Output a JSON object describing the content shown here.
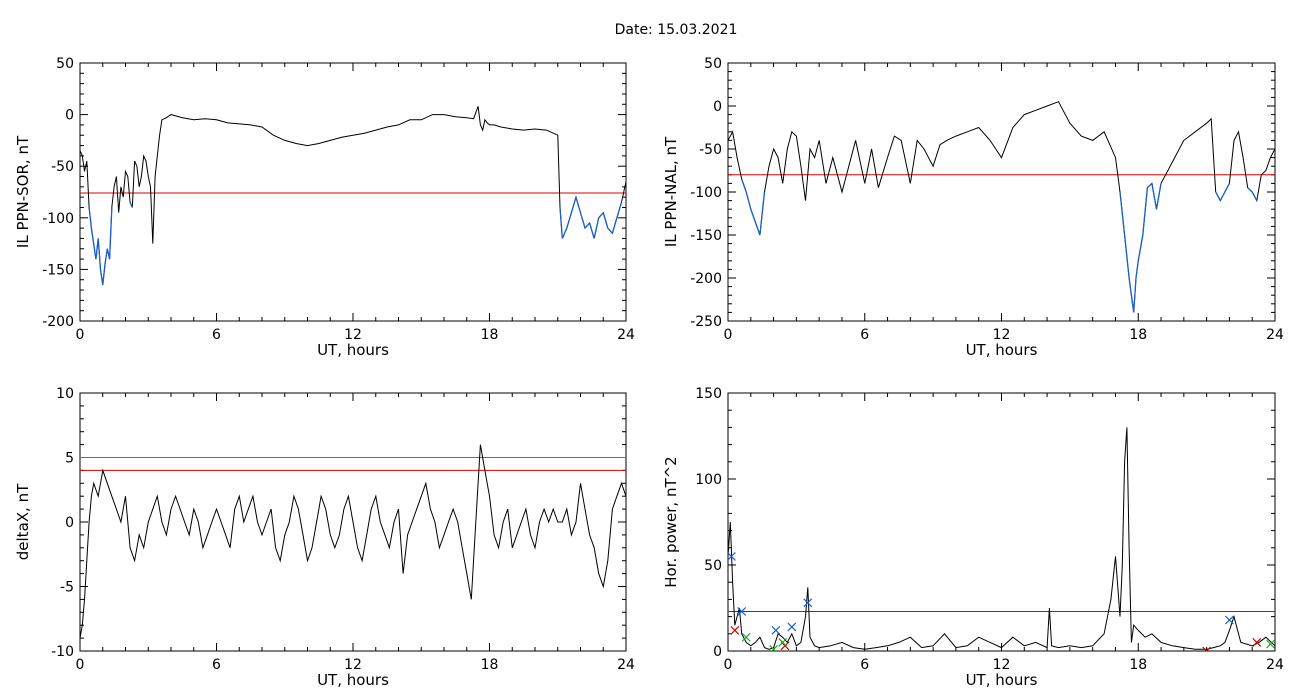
{
  "page": {
    "title": "Date:  15.03.2021"
  },
  "colors": {
    "signal": "#000000",
    "highlight": "#1a5fd0",
    "threshold_red": "#dd0000",
    "threshold_teal": "#1a8fa0",
    "marker_blue": "#1a5fd0",
    "marker_red": "#cc0000",
    "marker_green": "#22aa22"
  },
  "chart_data": [
    {
      "id": "il-sor",
      "type": "line",
      "xlabel": "UT, hours",
      "ylabel": "IL PPN-SOR, nT",
      "xlim": [
        0,
        24
      ],
      "ylim": [
        -200,
        50
      ],
      "xticks": [
        0,
        6,
        12,
        18,
        24
      ],
      "yticks": [
        -200,
        -150,
        -100,
        -50,
        0,
        50
      ],
      "thresholds": [
        {
          "value": -76,
          "color": "#dd0000"
        }
      ],
      "highlight_below": -76,
      "series": [
        {
          "x": [
            0,
            0.1,
            0.2,
            0.3,
            0.4,
            0.5,
            0.6,
            0.7,
            0.8,
            0.9,
            1.0,
            1.1,
            1.2,
            1.3,
            1.4,
            1.5,
            1.6,
            1.7,
            1.8,
            1.9,
            2.0,
            2.1,
            2.2,
            2.3,
            2.4,
            2.5,
            2.6,
            2.7,
            2.8,
            2.9,
            3.0,
            3.1,
            3.2,
            3.3,
            3.4,
            3.5,
            3.6,
            3.8,
            4.0,
            4.5,
            5,
            5.5,
            6,
            6.5,
            7,
            7.5,
            8,
            8.5,
            9,
            9.5,
            10,
            10.5,
            11,
            11.5,
            12,
            12.5,
            13,
            13.5,
            14,
            14.5,
            15,
            15.5,
            16,
            16.5,
            17,
            17.3,
            17.5,
            17.6,
            17.7,
            17.8,
            17.9,
            18.0,
            18.2,
            18.5,
            19,
            19.5,
            20,
            20.5,
            21,
            21.1,
            21.2,
            21.3,
            21.4,
            21.6,
            21.8,
            22.0,
            22.2,
            22.4,
            22.6,
            22.8,
            23.0,
            23.2,
            23.4,
            23.6,
            23.8,
            24.0
          ],
          "values": [
            -35,
            -40,
            -55,
            -45,
            -90,
            -110,
            -125,
            -140,
            -120,
            -150,
            -165,
            -145,
            -130,
            -140,
            -90,
            -70,
            -60,
            -95,
            -70,
            -80,
            -55,
            -60,
            -85,
            -90,
            -45,
            -50,
            -70,
            -60,
            -40,
            -45,
            -60,
            -70,
            -125,
            -60,
            -40,
            -20,
            -5,
            -3,
            0,
            -3,
            -5,
            -4,
            -5,
            -8,
            -9,
            -10,
            -12,
            -20,
            -25,
            -28,
            -30,
            -28,
            -25,
            -22,
            -20,
            -18,
            -15,
            -12,
            -10,
            -5,
            -5,
            0,
            0,
            -2,
            -3,
            -4,
            8,
            -10,
            -15,
            -5,
            -8,
            -10,
            -10,
            -12,
            -14,
            -15,
            -14,
            -15,
            -20,
            -90,
            -120,
            -115,
            -110,
            -95,
            -80,
            -95,
            -110,
            -105,
            -120,
            -100,
            -95,
            -110,
            -115,
            -100,
            -85,
            -65
          ]
        }
      ]
    },
    {
      "id": "il-nal",
      "type": "line",
      "xlabel": "UT, hours",
      "ylabel": "IL PPN-NAL, nT",
      "xlim": [
        0,
        24
      ],
      "ylim": [
        -250,
        50
      ],
      "xticks": [
        0,
        6,
        12,
        18,
        24
      ],
      "yticks": [
        -250,
        -200,
        -150,
        -100,
        -50,
        0,
        50
      ],
      "thresholds": [
        {
          "value": -80,
          "color": "#dd0000"
        }
      ],
      "highlight_below": -80,
      "series": [
        {
          "x": [
            0,
            0.2,
            0.4,
            0.6,
            0.8,
            1.0,
            1.2,
            1.4,
            1.6,
            1.8,
            2.0,
            2.2,
            2.4,
            2.6,
            2.8,
            3.0,
            3.2,
            3.4,
            3.6,
            3.8,
            4.0,
            4.3,
            4.6,
            5.0,
            5.3,
            5.6,
            6.0,
            6.3,
            6.6,
            7.0,
            7.3,
            7.6,
            8.0,
            8.3,
            8.6,
            9.0,
            9.3,
            9.6,
            10.0,
            10.5,
            11.0,
            11.5,
            12.0,
            12.5,
            13.0,
            13.5,
            14.0,
            14.5,
            15.0,
            15.5,
            16.0,
            16.5,
            17.0,
            17.2,
            17.4,
            17.6,
            17.8,
            17.9,
            18.0,
            18.2,
            18.4,
            18.6,
            18.8,
            19.0,
            19.2,
            19.6,
            20.0,
            20.5,
            21.0,
            21.2,
            21.4,
            21.6,
            21.8,
            22.0,
            22.2,
            22.4,
            22.6,
            22.8,
            23.0,
            23.2,
            23.4,
            23.6,
            23.8,
            24.0
          ],
          "values": [
            -40,
            -30,
            -60,
            -85,
            -100,
            -120,
            -135,
            -150,
            -100,
            -70,
            -50,
            -60,
            -90,
            -50,
            -30,
            -35,
            -70,
            -110,
            -50,
            -60,
            -40,
            -90,
            -60,
            -100,
            -70,
            -40,
            -90,
            -50,
            -95,
            -60,
            -35,
            -40,
            -90,
            -40,
            -50,
            -70,
            -45,
            -40,
            -35,
            -30,
            -25,
            -40,
            -60,
            -25,
            -10,
            -5,
            0,
            5,
            -20,
            -35,
            -40,
            -30,
            -60,
            -100,
            -150,
            -200,
            -240,
            -200,
            -180,
            -150,
            -95,
            -90,
            -120,
            -90,
            -80,
            -60,
            -40,
            -30,
            -20,
            -15,
            -100,
            -110,
            -100,
            -90,
            -40,
            -30,
            -60,
            -95,
            -100,
            -110,
            -80,
            -75,
            -60,
            -50
          ]
        }
      ]
    },
    {
      "id": "deltax",
      "type": "line",
      "xlabel": "UT, hours",
      "ylabel": "deltaX, nT",
      "xlim": [
        0,
        24
      ],
      "ylim": [
        -10,
        10
      ],
      "xticks": [
        0,
        6,
        12,
        18,
        24
      ],
      "yticks": [
        -10,
        -5,
        0,
        5,
        10
      ],
      "thresholds": [
        {
          "value": 5,
          "color": "#1a8fa0"
        },
        {
          "value": 4,
          "color": "#dd0000"
        }
      ],
      "series": [
        {
          "x": [
            0,
            0.1,
            0.2,
            0.3,
            0.4,
            0.5,
            0.6,
            0.8,
            1.0,
            1.2,
            1.4,
            1.6,
            1.8,
            2.0,
            2.2,
            2.4,
            2.6,
            2.8,
            3.0,
            3.2,
            3.4,
            3.6,
            3.8,
            4.0,
            4.2,
            4.4,
            4.6,
            4.8,
            5.0,
            5.2,
            5.4,
            5.6,
            5.8,
            6.0,
            6.2,
            6.4,
            6.6,
            6.8,
            7.0,
            7.2,
            7.4,
            7.6,
            7.8,
            8.0,
            8.2,
            8.4,
            8.6,
            8.8,
            9.0,
            9.2,
            9.4,
            9.6,
            9.8,
            10.0,
            10.2,
            10.4,
            10.6,
            10.8,
            11.0,
            11.2,
            11.4,
            11.6,
            11.8,
            12.0,
            12.2,
            12.4,
            12.6,
            12.8,
            13.0,
            13.2,
            13.4,
            13.6,
            13.8,
            14.0,
            14.2,
            14.4,
            14.6,
            14.8,
            15.0,
            15.2,
            15.4,
            15.6,
            15.8,
            16.0,
            16.2,
            16.4,
            16.6,
            16.8,
            17.0,
            17.2,
            17.4,
            17.6,
            17.8,
            18.0,
            18.2,
            18.4,
            18.6,
            18.8,
            19.0,
            19.2,
            19.4,
            19.6,
            19.8,
            20.0,
            20.2,
            20.4,
            20.6,
            20.8,
            21.0,
            21.2,
            21.4,
            21.6,
            21.8,
            22.0,
            22.2,
            22.4,
            22.6,
            22.8,
            23.0,
            23.2,
            23.4,
            23.6,
            23.8,
            24.0
          ],
          "values": [
            -9,
            -8,
            -6,
            -3,
            0,
            2,
            3,
            2,
            4,
            3,
            2,
            1,
            0,
            2,
            -2,
            -3,
            -1,
            -2,
            0,
            1,
            2,
            0,
            -1,
            1,
            2,
            1,
            0,
            -1,
            1,
            0,
            -2,
            -1,
            0,
            1,
            0,
            -1,
            -2,
            1,
            2,
            0,
            1,
            2,
            0,
            -1,
            0,
            1,
            -2,
            -3,
            -1,
            0,
            2,
            1,
            -1,
            -3,
            -2,
            0,
            2,
            1,
            -1,
            -2,
            -1,
            1,
            2,
            0,
            -2,
            -3,
            -1,
            1,
            2,
            0,
            -1,
            -2,
            0,
            1,
            -4,
            -1,
            0,
            1,
            2,
            3,
            1,
            0,
            -2,
            -1,
            0,
            1,
            0,
            -2,
            -4,
            -6,
            0,
            6,
            4,
            2,
            -1,
            -2,
            0,
            1,
            -2,
            -1,
            0,
            1,
            -1,
            -2,
            0,
            1,
            0,
            1,
            0,
            0,
            1,
            -1,
            0,
            3,
            1,
            -1,
            -2,
            -4,
            -5,
            -3,
            1,
            2,
            3,
            2
          ]
        }
      ]
    },
    {
      "id": "hor-power",
      "type": "line",
      "xlabel": "UT, hours",
      "ylabel": "Hor. power, nT^2",
      "xlim": [
        0,
        24
      ],
      "ylim": [
        0,
        150
      ],
      "xticks": [
        0,
        6,
        12,
        18,
        24
      ],
      "yticks": [
        0,
        50,
        100,
        150
      ],
      "thresholds": [
        {
          "value": 23,
          "color": "#dd0000"
        }
      ],
      "series": [
        {
          "x": [
            0,
            0.1,
            0.2,
            0.3,
            0.4,
            0.5,
            0.6,
            0.8,
            1.0,
            1.2,
            1.4,
            1.6,
            1.8,
            2.0,
            2.2,
            2.4,
            2.6,
            2.8,
            3.0,
            3.2,
            3.4,
            3.5,
            3.6,
            3.8,
            4.0,
            4.5,
            5,
            5.5,
            6,
            6.5,
            7,
            7.5,
            8,
            8.5,
            9,
            9.5,
            10,
            10.5,
            11,
            11.5,
            12,
            12.5,
            13,
            13.5,
            14,
            14.1,
            14.2,
            14.5,
            15,
            15.5,
            16,
            16.5,
            16.8,
            17.0,
            17.2,
            17.3,
            17.4,
            17.5,
            17.6,
            17.7,
            17.8,
            18.0,
            18.3,
            18.6,
            19,
            19.5,
            20,
            20.5,
            21,
            21.3,
            21.6,
            21.8,
            22.0,
            22.2,
            22.5,
            23,
            23.3,
            23.6,
            24.0
          ],
          "values": [
            55,
            75,
            40,
            15,
            20,
            25,
            10,
            5,
            3,
            5,
            8,
            2,
            1,
            2,
            10,
            8,
            5,
            10,
            3,
            5,
            20,
            37,
            8,
            3,
            2,
            3,
            5,
            2,
            1,
            2,
            3,
            5,
            8,
            2,
            3,
            10,
            2,
            3,
            8,
            5,
            2,
            8,
            3,
            5,
            2,
            25,
            3,
            2,
            3,
            2,
            3,
            10,
            30,
            55,
            20,
            50,
            110,
            130,
            60,
            5,
            15,
            12,
            8,
            10,
            5,
            3,
            2,
            1,
            1,
            2,
            3,
            5,
            12,
            20,
            5,
            3,
            5,
            8,
            3
          ]
        }
      ],
      "markers": [
        {
          "x": 0.15,
          "y": 55,
          "color": "#1a5fd0"
        },
        {
          "x": 0.6,
          "y": 23,
          "color": "#1a5fd0"
        },
        {
          "x": 2.1,
          "y": 12,
          "color": "#1a5fd0"
        },
        {
          "x": 2.8,
          "y": 14,
          "color": "#1a5fd0"
        },
        {
          "x": 3.5,
          "y": 28,
          "color": "#1a5fd0"
        },
        {
          "x": 22.0,
          "y": 18,
          "color": "#1a5fd0"
        },
        {
          "x": 0.3,
          "y": 12,
          "color": "#cc0000"
        },
        {
          "x": 2.5,
          "y": 3,
          "color": "#cc0000"
        },
        {
          "x": 21.0,
          "y": 0,
          "color": "#cc0000"
        },
        {
          "x": 23.2,
          "y": 5,
          "color": "#cc0000"
        },
        {
          "x": 0.8,
          "y": 8,
          "color": "#22aa22"
        },
        {
          "x": 2.0,
          "y": 1,
          "color": "#22aa22"
        },
        {
          "x": 2.4,
          "y": 5,
          "color": "#22aa22"
        },
        {
          "x": 23.8,
          "y": 4,
          "color": "#22aa22"
        }
      ]
    }
  ]
}
